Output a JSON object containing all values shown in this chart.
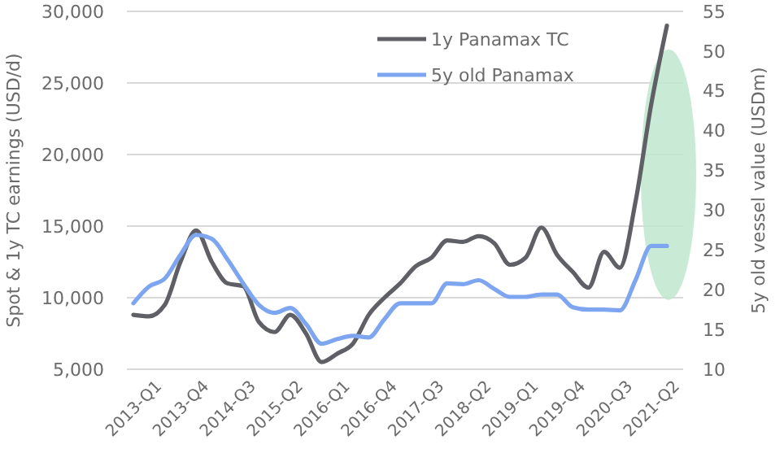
{
  "chart_data": {
    "type": "line",
    "ylabel": "Spot & 1y TC earnings (USD/d)",
    "y2label": "5y old vessel value (USDm)",
    "categories": [
      "2013-Q1",
      null,
      null,
      "2013-Q4",
      null,
      null,
      "2014-Q3",
      null,
      null,
      "2015-Q2",
      null,
      null,
      "2016-Q1",
      null,
      null,
      "2016-Q4",
      null,
      null,
      "2017-Q3",
      null,
      null,
      "2018-Q2",
      null,
      null,
      "2019-Q1",
      null,
      null,
      "2019-Q4",
      null,
      null,
      "2020-Q3",
      null,
      null,
      "2021-Q2",
      null
    ],
    "series": [
      {
        "name": "1y Panamax TC",
        "color": "#5f5f66",
        "values": [
          8800,
          8700,
          9500,
          12500,
          14700,
          12500,
          11000,
          10800,
          8300,
          7600,
          8800,
          7500,
          5500,
          6100,
          6800,
          8800,
          10000,
          11000,
          12200,
          12800,
          14000,
          13900,
          14300,
          13800,
          12300,
          12800,
          14900,
          13000,
          11800,
          10700,
          13200,
          12100,
          16700,
          23500,
          29000
        ]
      },
      {
        "name": "5y old Panamax",
        "color": "#7ea6f0",
        "axis": "y2",
        "values": [
          18.3,
          20.4,
          21.4,
          24.4,
          26.9,
          26.4,
          23.8,
          20.8,
          18.1,
          17.1,
          17.7,
          15.7,
          13.2,
          13.8,
          14.2,
          14,
          16.3,
          18.3,
          18.3,
          18.3,
          20.8,
          20.7,
          21.2,
          20.1,
          19.1,
          19.1,
          19.4,
          19.4,
          17.8,
          17.5,
          17.5,
          17.4,
          21.2,
          25.5,
          25.5
        ]
      }
    ],
    "ylim": [
      5000,
      30000
    ],
    "yticks": [
      {
        "value": 5000,
        "label": "5,000"
      },
      {
        "value": 10000,
        "label": "10,000"
      },
      {
        "value": 15000,
        "label": "15,000"
      },
      {
        "value": 20000,
        "label": "20,000"
      },
      {
        "value": 25000,
        "label": "25,000"
      },
      {
        "value": 30000,
        "label": "30,000"
      }
    ],
    "y2lim": [
      10,
      55
    ],
    "y2ticks": [
      10,
      15,
      20,
      25,
      30,
      35,
      40,
      45,
      50,
      55
    ],
    "grid": "y",
    "legend": "top right",
    "marker": "none",
    "line_style": "solid"
  }
}
